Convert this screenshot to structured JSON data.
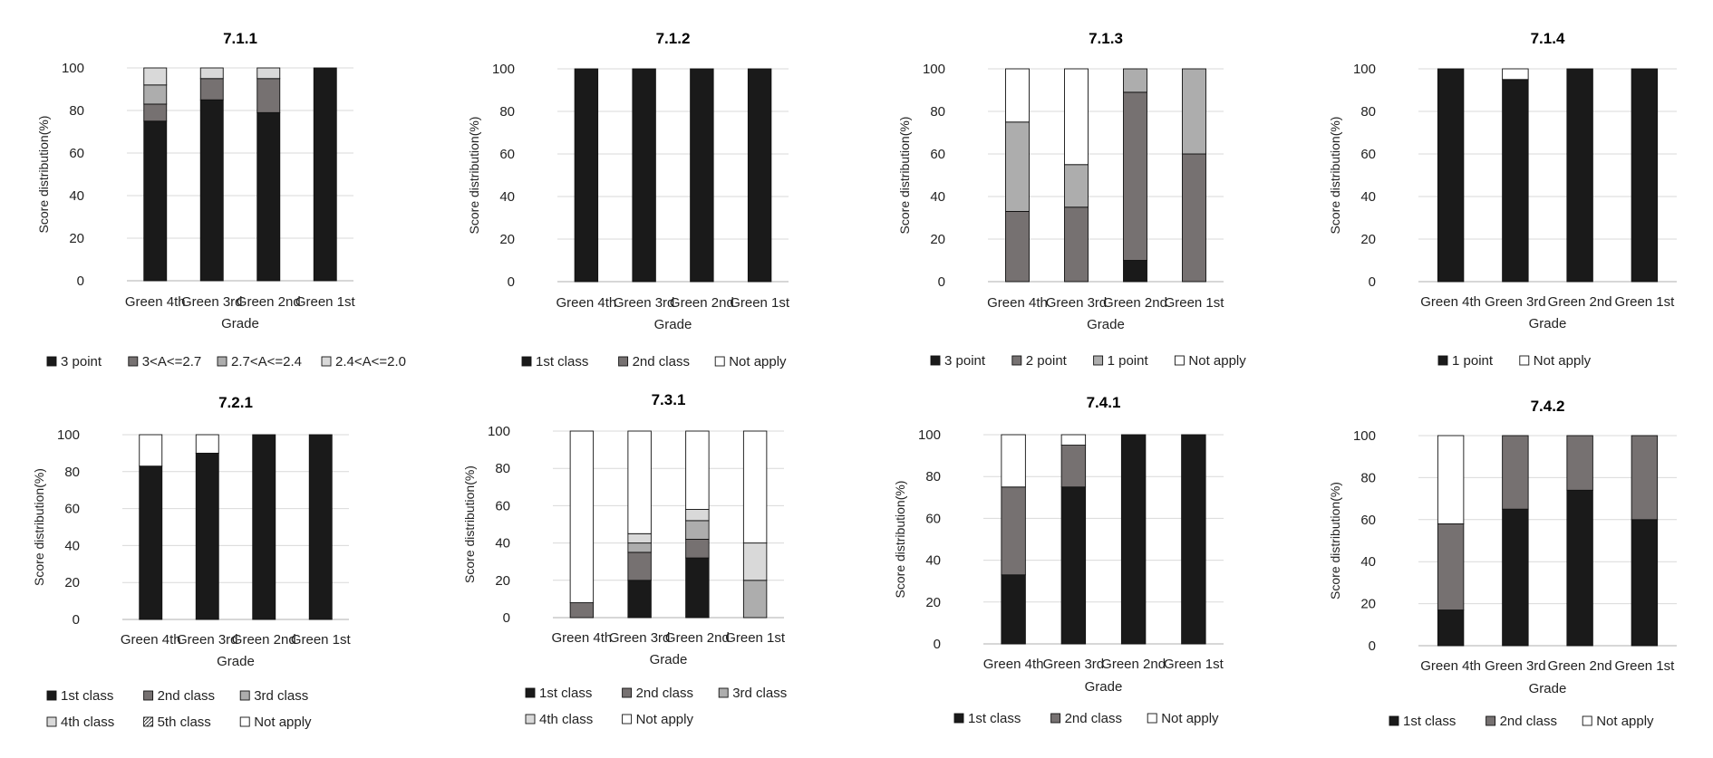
{
  "colors": {
    "c_black": "#1a1a1a",
    "c_dark": "#767171",
    "c_mid": "#adadad",
    "c_light": "#d9d9d9",
    "c_white": "#ffffff",
    "grid": "#d9d9d9",
    "axis": "#bfbfbf"
  },
  "chart_data": [
    {
      "type": "bar",
      "stacked": true,
      "title": "7.1.1",
      "categories": [
        "Green 4th",
        "Green 3rd",
        "Green 2nd",
        "Green 1st"
      ],
      "xlabel": "Grade",
      "ylabel": "Score distribution(%)",
      "ylim": [
        0,
        100
      ],
      "yticks": [
        "0",
        "20",
        "40",
        "60",
        "80",
        "100"
      ],
      "grid": true,
      "legend": "bottom",
      "legend_rows": [
        [
          0,
          1,
          2,
          3
        ]
      ],
      "series": [
        {
          "name": "3 point",
          "color": "c_black",
          "values": [
            75,
            85,
            79,
            100
          ]
        },
        {
          "name": "3<A<=2.7",
          "color": "c_dark",
          "values": [
            8,
            10,
            16,
            0
          ]
        },
        {
          "name": "2.7<A<=2.4",
          "color": "c_mid",
          "values": [
            9,
            0,
            0,
            0
          ]
        },
        {
          "name": "2.4<A<=2.0",
          "color": "c_light",
          "values": [
            8,
            5,
            5,
            0
          ]
        }
      ]
    },
    {
      "type": "bar",
      "stacked": true,
      "title": "7.1.2",
      "categories": [
        "Green 4th",
        "Green 3rd",
        "Green 2nd",
        "Green 1st"
      ],
      "xlabel": "Grade",
      "ylabel": "Score distribution(%)",
      "ylim": [
        0,
        100
      ],
      "yticks": [
        "0",
        "20",
        "40",
        "60",
        "80",
        "100"
      ],
      "grid": true,
      "legend": "bottom",
      "legend_rows": [
        [
          0,
          1,
          2
        ]
      ],
      "series": [
        {
          "name": "1st class",
          "color": "c_black",
          "values": [
            100,
            100,
            100,
            100
          ]
        },
        {
          "name": "2nd class",
          "color": "c_dark",
          "values": [
            0,
            0,
            0,
            0
          ]
        },
        {
          "name": "Not apply",
          "color": "c_white",
          "values": [
            0,
            0,
            0,
            0
          ]
        }
      ]
    },
    {
      "type": "bar",
      "stacked": true,
      "title": "7.1.3",
      "categories": [
        "Green 4th",
        "Green 3rd",
        "Green 2nd",
        "Green 1st"
      ],
      "xlabel": "Grade",
      "ylabel": "Score distribution(%)",
      "ylim": [
        0,
        100
      ],
      "yticks": [
        "0",
        "20",
        "40",
        "60",
        "80",
        "100"
      ],
      "grid": true,
      "legend": "bottom",
      "legend_rows": [
        [
          0,
          1,
          2,
          3
        ]
      ],
      "series": [
        {
          "name": "3 point",
          "color": "c_black",
          "values": [
            0,
            0,
            10,
            0
          ]
        },
        {
          "name": "2 point",
          "color": "c_dark",
          "values": [
            33,
            35,
            79,
            60
          ]
        },
        {
          "name": "1 point",
          "color": "c_mid",
          "values": [
            42,
            20,
            11,
            40
          ]
        },
        {
          "name": "Not apply",
          "color": "c_white",
          "values": [
            25,
            45,
            0,
            0
          ]
        }
      ]
    },
    {
      "type": "bar",
      "stacked": true,
      "title": "7.1.4",
      "categories": [
        "Green 4th",
        "Green 3rd",
        "Green 2nd",
        "Green 1st"
      ],
      "xlabel": "Grade",
      "ylabel": "Score distribution(%)",
      "ylim": [
        0,
        100
      ],
      "yticks": [
        "0",
        "20",
        "40",
        "60",
        "80",
        "100"
      ],
      "grid": true,
      "legend": "bottom",
      "legend_rows": [
        [
          0,
          1
        ]
      ],
      "series": [
        {
          "name": "1 point",
          "color": "c_black",
          "values": [
            100,
            95,
            100,
            100
          ]
        },
        {
          "name": "Not apply",
          "color": "c_white",
          "values": [
            0,
            5,
            0,
            0
          ]
        }
      ]
    },
    {
      "type": "bar",
      "stacked": true,
      "title": "7.2.1",
      "categories": [
        "Green 4th",
        "Green 3rd",
        "Green 2nd",
        "Green 1st"
      ],
      "xlabel": "Grade",
      "ylabel": "Score distribution(%)",
      "ylim": [
        0,
        100
      ],
      "yticks": [
        "0",
        "20",
        "40",
        "60",
        "80",
        "100"
      ],
      "grid": true,
      "legend": "bottom",
      "legend_rows": [
        [
          0,
          1,
          2
        ],
        [
          3,
          4,
          5
        ]
      ],
      "series": [
        {
          "name": "1st class",
          "color": "c_black",
          "values": [
            83,
            90,
            100,
            100
          ]
        },
        {
          "name": "2nd class",
          "color": "c_dark",
          "values": [
            0,
            0,
            0,
            0
          ]
        },
        {
          "name": "3rd class",
          "color": "c_mid",
          "values": [
            0,
            0,
            0,
            0
          ]
        },
        {
          "name": "4th class",
          "color": "c_light",
          "values": [
            0,
            0,
            0,
            0
          ]
        },
        {
          "name": "5th class",
          "color": "hatch",
          "values": [
            0,
            0,
            0,
            0
          ]
        },
        {
          "name": "Not apply",
          "color": "c_white",
          "values": [
            17,
            10,
            0,
            0
          ]
        }
      ]
    },
    {
      "type": "bar",
      "stacked": true,
      "title": "7.3.1",
      "categories": [
        "Green 4th",
        "Green 3rd",
        "Green 2nd",
        "Green 1st"
      ],
      "xlabel": "Grade",
      "ylabel": "Score distribution(%)",
      "ylim": [
        0,
        100
      ],
      "yticks": [
        "0",
        "20",
        "40",
        "60",
        "80",
        "100"
      ],
      "grid": true,
      "legend": "bottom",
      "legend_rows": [
        [
          0,
          1,
          2
        ],
        [
          3,
          4
        ]
      ],
      "series": [
        {
          "name": "1st class",
          "color": "c_black",
          "values": [
            0,
            20,
            32,
            0
          ]
        },
        {
          "name": "2nd class",
          "color": "c_dark",
          "values": [
            8,
            15,
            10,
            0
          ]
        },
        {
          "name": "3rd class",
          "color": "c_mid",
          "values": [
            0,
            5,
            10,
            20
          ]
        },
        {
          "name": "4th class",
          "color": "c_light",
          "values": [
            0,
            5,
            6,
            20
          ]
        },
        {
          "name": "Not apply",
          "color": "c_white",
          "values": [
            92,
            55,
            42,
            60
          ]
        }
      ]
    },
    {
      "type": "bar",
      "stacked": true,
      "title": "7.4.1",
      "categories": [
        "Green 4th",
        "Green 3rd",
        "Green 2nd",
        "Green 1st"
      ],
      "xlabel": "Grade",
      "ylabel": "Score distribution(%)",
      "ylim": [
        0,
        100
      ],
      "yticks": [
        "0",
        "20",
        "40",
        "60",
        "80",
        "100"
      ],
      "grid": true,
      "legend": "bottom",
      "legend_rows": [
        [
          0,
          1,
          2
        ]
      ],
      "series": [
        {
          "name": "1st class",
          "color": "c_black",
          "values": [
            33,
            75,
            100,
            100
          ]
        },
        {
          "name": "2nd class",
          "color": "c_dark",
          "values": [
            42,
            20,
            0,
            0
          ]
        },
        {
          "name": "Not apply",
          "color": "c_white",
          "values": [
            25,
            5,
            0,
            0
          ]
        }
      ]
    },
    {
      "type": "bar",
      "stacked": true,
      "title": "7.4.2",
      "categories": [
        "Green 4th",
        "Green 3rd",
        "Green 2nd",
        "Green 1st"
      ],
      "xlabel": "Grade",
      "ylabel": "Score distribution(%)",
      "ylim": [
        0,
        100
      ],
      "yticks": [
        "0",
        "20",
        "40",
        "60",
        "80",
        "100"
      ],
      "grid": true,
      "legend": "bottom",
      "legend_rows": [
        [
          0,
          1,
          2
        ]
      ],
      "series": [
        {
          "name": "1st class",
          "color": "c_black",
          "values": [
            17,
            65,
            74,
            60
          ]
        },
        {
          "name": "2nd class",
          "color": "c_dark",
          "values": [
            41,
            35,
            26,
            40
          ]
        },
        {
          "name": "Not apply",
          "color": "c_white",
          "values": [
            42,
            0,
            0,
            0
          ]
        }
      ]
    }
  ]
}
